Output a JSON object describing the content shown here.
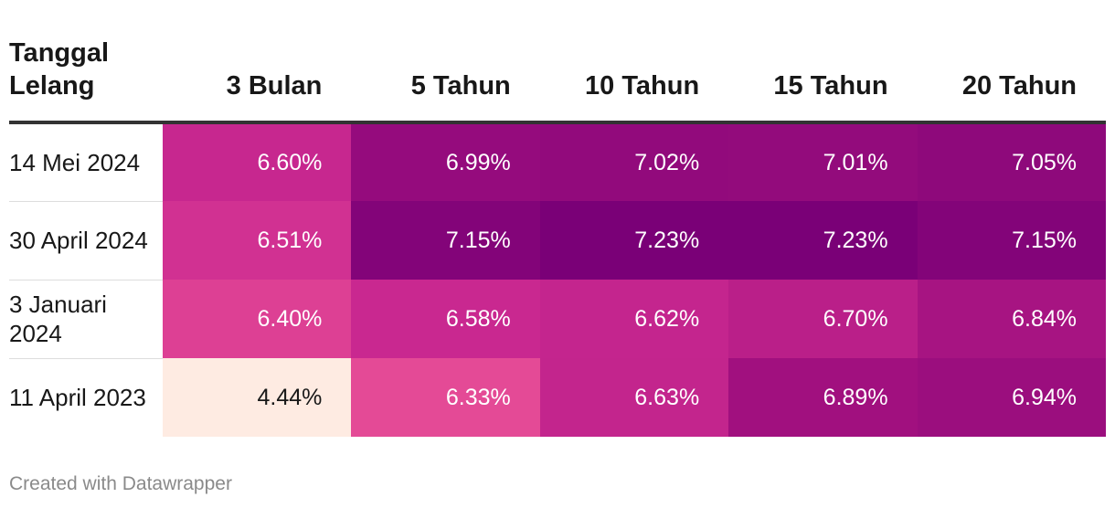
{
  "chart_data": {
    "type": "table",
    "columns": [
      "Tanggal Lelang",
      "3 Bulan",
      "5 Tahun",
      "10 Tahun",
      "15 Tahun",
      "20 Tahun"
    ],
    "rows": [
      {
        "date": "14 Mei 2024",
        "values": [
          6.6,
          6.99,
          7.02,
          7.01,
          7.05
        ],
        "labels": [
          "6.60%",
          "6.99%",
          "7.02%",
          "7.01%",
          "7.05%"
        ]
      },
      {
        "date": "30 April 2024",
        "values": [
          6.51,
          7.15,
          7.23,
          7.23,
          7.15
        ],
        "labels": [
          "6.51%",
          "7.15%",
          "7.23%",
          "7.23%",
          "7.15%"
        ]
      },
      {
        "date": "3 Januari 2024",
        "values": [
          6.4,
          6.58,
          6.62,
          6.7,
          6.84
        ],
        "labels": [
          "6.40%",
          "6.58%",
          "6.62%",
          "6.70%",
          "6.84%"
        ]
      },
      {
        "date": "11 April 2023",
        "values": [
          4.44,
          6.33,
          6.63,
          6.89,
          6.94
        ],
        "labels": [
          "4.44%",
          "6.33%",
          "6.63%",
          "6.89%",
          "6.94%"
        ]
      }
    ],
    "color_scale": {
      "min": 4.44,
      "max": 7.23,
      "stops": [
        "#feebe2",
        "#e64d96",
        "#cc2a91",
        "#a0107f",
        "#7a0077"
      ]
    }
  },
  "footer": "Created with Datawrapper"
}
